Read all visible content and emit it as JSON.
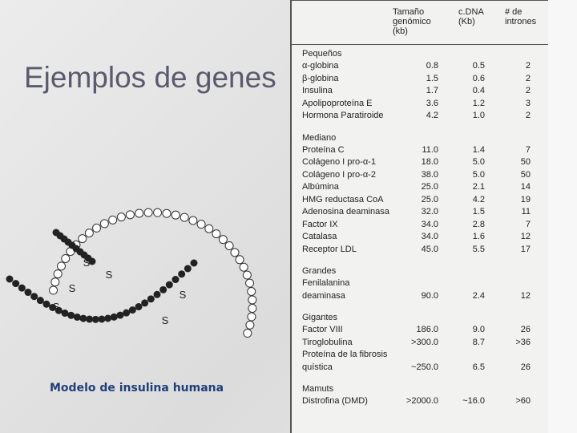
{
  "slide": {
    "title": "Ejemplos de genes",
    "caption": "Modelo de insulina humana"
  },
  "diagram": {
    "bond_labels": [
      "S",
      "S",
      "S",
      "S",
      "S",
      "S"
    ]
  },
  "table": {
    "headers": [
      "Tamaño genómico (kb)",
      "c.DNA (Kb)",
      "# de intrones"
    ],
    "groups": [
      {
        "name": "Pequeños",
        "rows": [
          [
            "α-globina",
            "0.8",
            "0.5",
            "2"
          ],
          [
            "β-globina",
            "1.5",
            "0.6",
            "2"
          ],
          [
            "Insulina",
            "1.7",
            "0.4",
            "2"
          ],
          [
            "Apolipoproteína E",
            "3.6",
            "1.2",
            "3"
          ],
          [
            "Hormona Paratiroide",
            "4.2",
            "1.0",
            "2"
          ]
        ]
      },
      {
        "name": "Mediano",
        "rows": [
          [
            "Proteína C",
            "11.0",
            "1.4",
            "7"
          ],
          [
            "Colágeno I pro-α-1",
            "18.0",
            "5.0",
            "50"
          ],
          [
            "Colágeno I pro-α-2",
            "38.0",
            "5.0",
            "50"
          ],
          [
            "Albúmina",
            "25.0",
            "2.1",
            "14"
          ],
          [
            "HMG reductasa CoA",
            "25.0",
            "4.2",
            "19"
          ],
          [
            "Adenosina deaminasa",
            "32.0",
            "1.5",
            "11"
          ],
          [
            "Factor IX",
            "34.0",
            "2.8",
            "7"
          ],
          [
            "Catalasa",
            "34.0",
            "1.6",
            "12"
          ],
          [
            "Receptor LDL",
            "45.0",
            "5.5",
            "17"
          ]
        ]
      },
      {
        "name": "Grandes",
        "rows": [
          [
            "Fenilalanina deaminasa",
            "90.0",
            "2.4",
            "12"
          ]
        ]
      },
      {
        "name": "Gigantes",
        "rows": [
          [
            "Factor VIII",
            "186.0",
            "9.0",
            "26"
          ],
          [
            "Tiroglobulina",
            ">300.0",
            "8.7",
            ">36"
          ],
          [
            "Proteína de la fibrosis quística",
            "~250.0",
            "6.5",
            "26"
          ]
        ]
      },
      {
        "name": "Mamuts",
        "rows": [
          [
            "Distrofina (DMD)",
            ">2000.0",
            "~16.0",
            ">60"
          ]
        ]
      }
    ]
  }
}
